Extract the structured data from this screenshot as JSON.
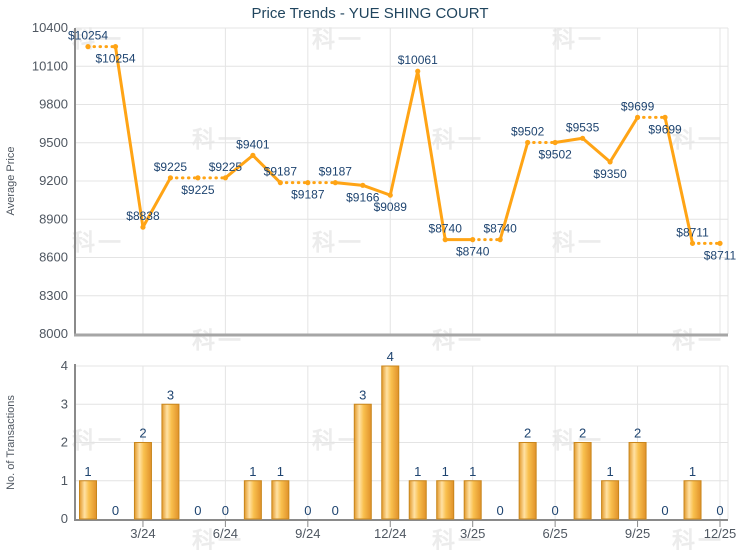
{
  "title": "Price Trends - YUE SHING COURT",
  "watermark": {
    "text": "科一"
  },
  "colors": {
    "line": "#FFA415",
    "grid": "#E4E4E4",
    "axis": "#8A8A8A",
    "axis_bottom_heavy": "#A6A6A6",
    "tick_text": "#4F5761",
    "value_text": "#1E4470",
    "title_text": "#20455E",
    "bar_edge": "#C8861C",
    "bar_gradient": [
      "#E2992C",
      "#FFE1A3",
      "#F9C04E",
      "#E0912A"
    ]
  },
  "chart_data": [
    {
      "type": "line",
      "title": "Price Trends - YUE SHING COURT",
      "ylabel": "Average Price",
      "ylim": [
        8000,
        10400
      ],
      "yticks": [
        8000,
        8300,
        8600,
        8900,
        9200,
        9500,
        9800,
        10100,
        10400
      ],
      "grid": true,
      "legend": false,
      "values": [
        10254,
        10254,
        8838,
        9225,
        9225,
        9225,
        9401,
        9187,
        9187,
        9187,
        9166,
        9089,
        10061,
        8740,
        8740,
        8740,
        9502,
        9502,
        9535,
        9350,
        9699,
        9699,
        8711,
        8711
      ],
      "point_labels": [
        "$10254",
        "$10254",
        "$8838",
        "$9225",
        "$9225",
        "$9225",
        "$9401",
        "$9187",
        "$9187",
        "$9187",
        "$9166",
        "$9089",
        "$10061",
        "$8740",
        "$8740",
        "$8740",
        "$9502",
        "$9502",
        "$9535",
        "$9350",
        "$9699",
        "$9699",
        "$8711",
        "$8711"
      ],
      "label_positions": [
        "above",
        "below",
        "above",
        "above",
        "below",
        "above",
        "above",
        "above",
        "below",
        "above",
        "below",
        "below",
        "above",
        "above",
        "below",
        "above",
        "above",
        "below",
        "above",
        "below",
        "above",
        "below",
        "above",
        "below"
      ],
      "dotted_when_no_transactions": true,
      "xticks": {
        "positions": [
          3,
          6,
          9,
          12,
          15,
          18,
          21,
          24
        ],
        "labels": [
          "3/24",
          "6/24",
          "9/24",
          "12/24",
          "3/25",
          "6/25",
          "9/25",
          "12/25"
        ]
      }
    },
    {
      "type": "bar",
      "ylabel": "No. of Transactions",
      "ylim": [
        0,
        4
      ],
      "yticks": [
        0,
        1,
        2,
        3,
        4
      ],
      "grid": true,
      "legend": false,
      "values": [
        1,
        0,
        2,
        3,
        0,
        0,
        1,
        1,
        0,
        0,
        3,
        4,
        1,
        1,
        1,
        0,
        2,
        0,
        2,
        1,
        2,
        0,
        1,
        0
      ],
      "xticks": {
        "positions": [
          3,
          6,
          9,
          12,
          15,
          18,
          21,
          24
        ],
        "labels": [
          "3/24",
          "6/24",
          "9/24",
          "12/24",
          "3/25",
          "6/25",
          "9/25",
          "12/25"
        ]
      }
    }
  ]
}
